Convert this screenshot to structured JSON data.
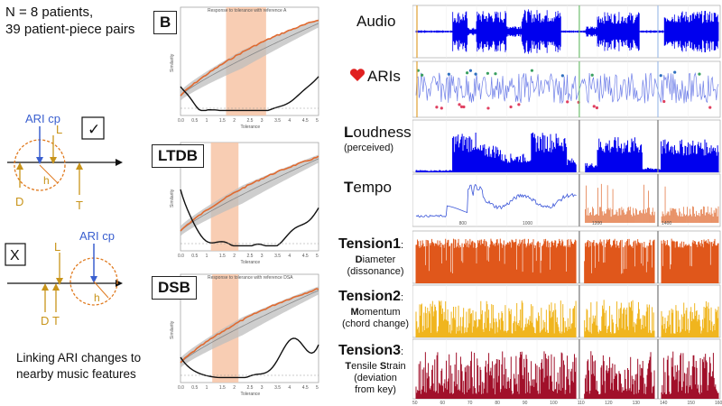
{
  "left": {
    "header_line1": "N = 8 patients,",
    "header_line2": "39 patient-piece pairs",
    "caption_line1": "Linking ARI changes to",
    "caption_line2": "nearby music features",
    "diagram_top": {
      "ari_label": "ARI cp",
      "check": "✓",
      "L": "L",
      "h": "h",
      "D": "D",
      "T": "T"
    },
    "diagram_bottom": {
      "ari_label": "ARI cp",
      "box": "X",
      "L": "L",
      "h": "h",
      "D": "D",
      "T": "T"
    }
  },
  "middle": {
    "panels": [
      {
        "label": "B",
        "title": "Response to tolerance with reference A"
      },
      {
        "label": "LTDB",
        "title": ""
      },
      {
        "label": "DSB",
        "title": "Response to tolerance with reference DSA"
      }
    ],
    "x_axis_label": "Tolerance",
    "y_axis_label": "Similarity",
    "x_ticks": [
      "0.0",
      "0.5",
      "1",
      "1.5",
      "2",
      "2.5",
      "3",
      "3.5",
      "4",
      "4.5",
      "5"
    ]
  },
  "right": {
    "rows": [
      {
        "label": "Audio"
      },
      {
        "label": "ARIs"
      },
      {
        "label_bold_part": "L",
        "label_rest": "oudness",
        "sub": "(perceived)"
      },
      {
        "label_bold_part": "T",
        "label_rest": "empo",
        "ticks": [
          "800",
          "1000",
          "1200",
          "1400"
        ]
      },
      {
        "label": "Tension1",
        "sub_bold": "D",
        "sub_rest": "iameter",
        "sub2": "(dissonance)"
      },
      {
        "label": "Tension2",
        "sub_bold": "M",
        "sub_rest": "omentum",
        "sub2": "(chord change)"
      },
      {
        "label": "Tension3",
        "sub_bold1": "T",
        "sub_rest1": "ensile ",
        "sub_bold2": "S",
        "sub_rest2": "train",
        "sub2": "(deviation",
        "sub3": "from key)"
      }
    ],
    "bottom_ticks": [
      "50",
      "60",
      "70",
      "80",
      "90",
      "100",
      "110",
      "120",
      "130",
      "140",
      "150",
      "160"
    ]
  },
  "colors": {
    "audio": "#0000ee",
    "ari": "#6f7fe8",
    "tension1": "#e0571b",
    "tension2": "#f0b51e",
    "tension3": "#a1102a",
    "orange_curve": "#e06a30",
    "shade": "#f7c4a6",
    "heart": "#e02020"
  }
}
